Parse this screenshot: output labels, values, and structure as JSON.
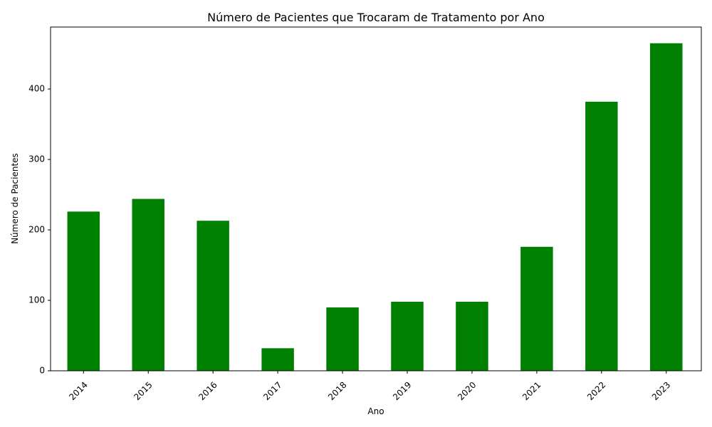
{
  "chart_data": {
    "type": "bar",
    "title": "Número de Pacientes que Trocaram de Tratamento por Ano",
    "xlabel": "Ano",
    "ylabel": "Número de Pacientes",
    "categories": [
      "2014",
      "2015",
      "2016",
      "2017",
      "2018",
      "2019",
      "2020",
      "2021",
      "2022",
      "2023"
    ],
    "values": [
      226,
      244,
      213,
      32,
      90,
      98,
      98,
      176,
      382,
      465
    ],
    "ylim": [
      0,
      488
    ],
    "yticks": [
      0,
      100,
      200,
      300,
      400
    ],
    "bar_color": "#008000",
    "grid": false,
    "legend": "none"
  }
}
